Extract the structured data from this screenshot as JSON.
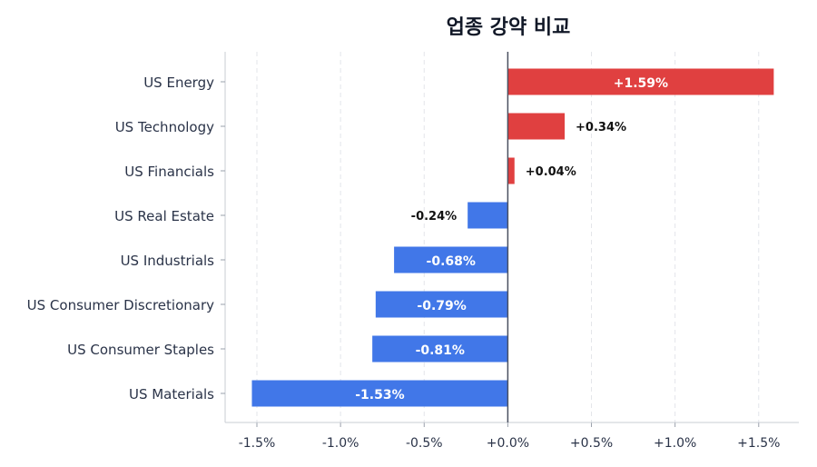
{
  "chart_data": {
    "type": "bar",
    "orientation": "horizontal",
    "title": "업종 강약 비교",
    "categories": [
      "US Energy",
      "US Technology",
      "US Financials",
      "US Real Estate",
      "US Industrials",
      "US Consumer Discretionary",
      "US Consumer Staples",
      "US Materials"
    ],
    "values": [
      1.59,
      0.34,
      0.04,
      -0.24,
      -0.68,
      -0.79,
      -0.81,
      -1.53
    ],
    "data_labels": [
      "+1.59%",
      "+0.34%",
      "+0.04%",
      "-0.24%",
      "-0.68%",
      "-0.79%",
      "-0.81%",
      "-1.53%"
    ],
    "xticks": [
      -1.5,
      -1.0,
      -0.5,
      0.0,
      0.5,
      1.0,
      1.5
    ],
    "xtick_labels": [
      "-1.5%",
      "-1.0%",
      "-0.5%",
      "+0.0%",
      "+0.5%",
      "+1.0%",
      "+1.5%"
    ],
    "xlim": [
      -1.69,
      1.74
    ],
    "xlabel": "",
    "ylabel": "",
    "grid": "vertical dashed",
    "colors": {
      "positive": "#e04040",
      "negative": "#4177e8",
      "zero_line": "#4a5060",
      "text": "#2a3348"
    }
  }
}
